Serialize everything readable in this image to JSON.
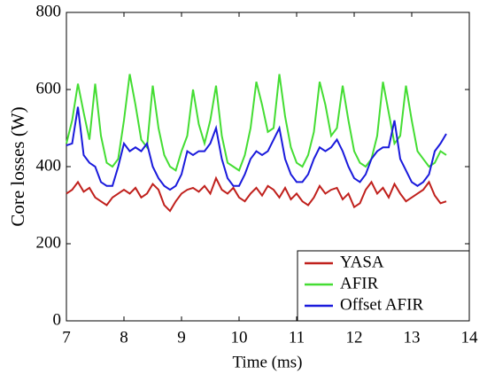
{
  "chart_data": {
    "type": "line",
    "xlabel": "Time (ms)",
    "ylabel": "Core losses (W)",
    "x": [
      7.0,
      7.1,
      7.2,
      7.3,
      7.4,
      7.5,
      7.6,
      7.7,
      7.8,
      7.9,
      8.0,
      8.1,
      8.2,
      8.3,
      8.4,
      8.5,
      8.6,
      8.7,
      8.8,
      8.9,
      9.0,
      9.1,
      9.2,
      9.3,
      9.4,
      9.5,
      9.6,
      9.7,
      9.8,
      9.9,
      10.0,
      10.1,
      10.2,
      10.3,
      10.4,
      10.5,
      10.6,
      10.7,
      10.8,
      10.9,
      11.0,
      11.1,
      11.2,
      11.3,
      11.4,
      11.5,
      11.6,
      11.7,
      11.8,
      11.9,
      12.0,
      12.1,
      12.2,
      12.3,
      12.4,
      12.5,
      12.6,
      12.7,
      12.8,
      12.9,
      13.0,
      13.1,
      13.2,
      13.3,
      13.4,
      13.5,
      13.6
    ],
    "series": [
      {
        "name": "YASA",
        "color": "#c0201c",
        "values": [
          330,
          340,
          360,
          335,
          345,
          320,
          310,
          300,
          320,
          330,
          340,
          330,
          345,
          320,
          330,
          355,
          340,
          300,
          285,
          310,
          330,
          340,
          345,
          335,
          350,
          330,
          370,
          340,
          330,
          345,
          320,
          310,
          330,
          345,
          325,
          350,
          340,
          320,
          345,
          315,
          330,
          310,
          300,
          320,
          350,
          330,
          340,
          345,
          315,
          330,
          295,
          305,
          340,
          360,
          330,
          345,
          320,
          355,
          330,
          310,
          320,
          330,
          340,
          360,
          325,
          305,
          310
        ]
      },
      {
        "name": "AFIR",
        "color": "#44dd33",
        "values": [
          460,
          520,
          615,
          540,
          470,
          615,
          480,
          410,
          400,
          420,
          520,
          640,
          560,
          470,
          450,
          610,
          500,
          430,
          400,
          390,
          440,
          480,
          600,
          510,
          460,
          520,
          610,
          480,
          410,
          400,
          390,
          430,
          500,
          620,
          560,
          490,
          500,
          640,
          530,
          450,
          410,
          400,
          430,
          490,
          620,
          560,
          480,
          500,
          610,
          520,
          440,
          410,
          400,
          420,
          480,
          620,
          540,
          460,
          480,
          610,
          520,
          440,
          420,
          400,
          410,
          440,
          430
        ]
      },
      {
        "name": "Offset AFIR",
        "color": "#1a1adc",
        "values": [
          455,
          460,
          555,
          430,
          410,
          400,
          360,
          350,
          350,
          400,
          460,
          440,
          450,
          440,
          460,
          400,
          370,
          350,
          340,
          350,
          380,
          440,
          430,
          440,
          440,
          460,
          500,
          420,
          370,
          350,
          350,
          380,
          420,
          440,
          430,
          440,
          470,
          500,
          420,
          380,
          360,
          360,
          380,
          420,
          450,
          440,
          450,
          470,
          440,
          400,
          370,
          360,
          380,
          420,
          440,
          450,
          450,
          520,
          420,
          390,
          360,
          350,
          360,
          380,
          440,
          460,
          485
        ]
      }
    ],
    "xlim": [
      7,
      14
    ],
    "xticks": [
      7,
      8,
      9,
      10,
      11,
      12,
      13,
      14
    ],
    "ylim": [
      0,
      800
    ],
    "yticks": [
      0,
      200,
      400,
      600,
      800
    ],
    "grid": false,
    "legend": "lower right"
  }
}
